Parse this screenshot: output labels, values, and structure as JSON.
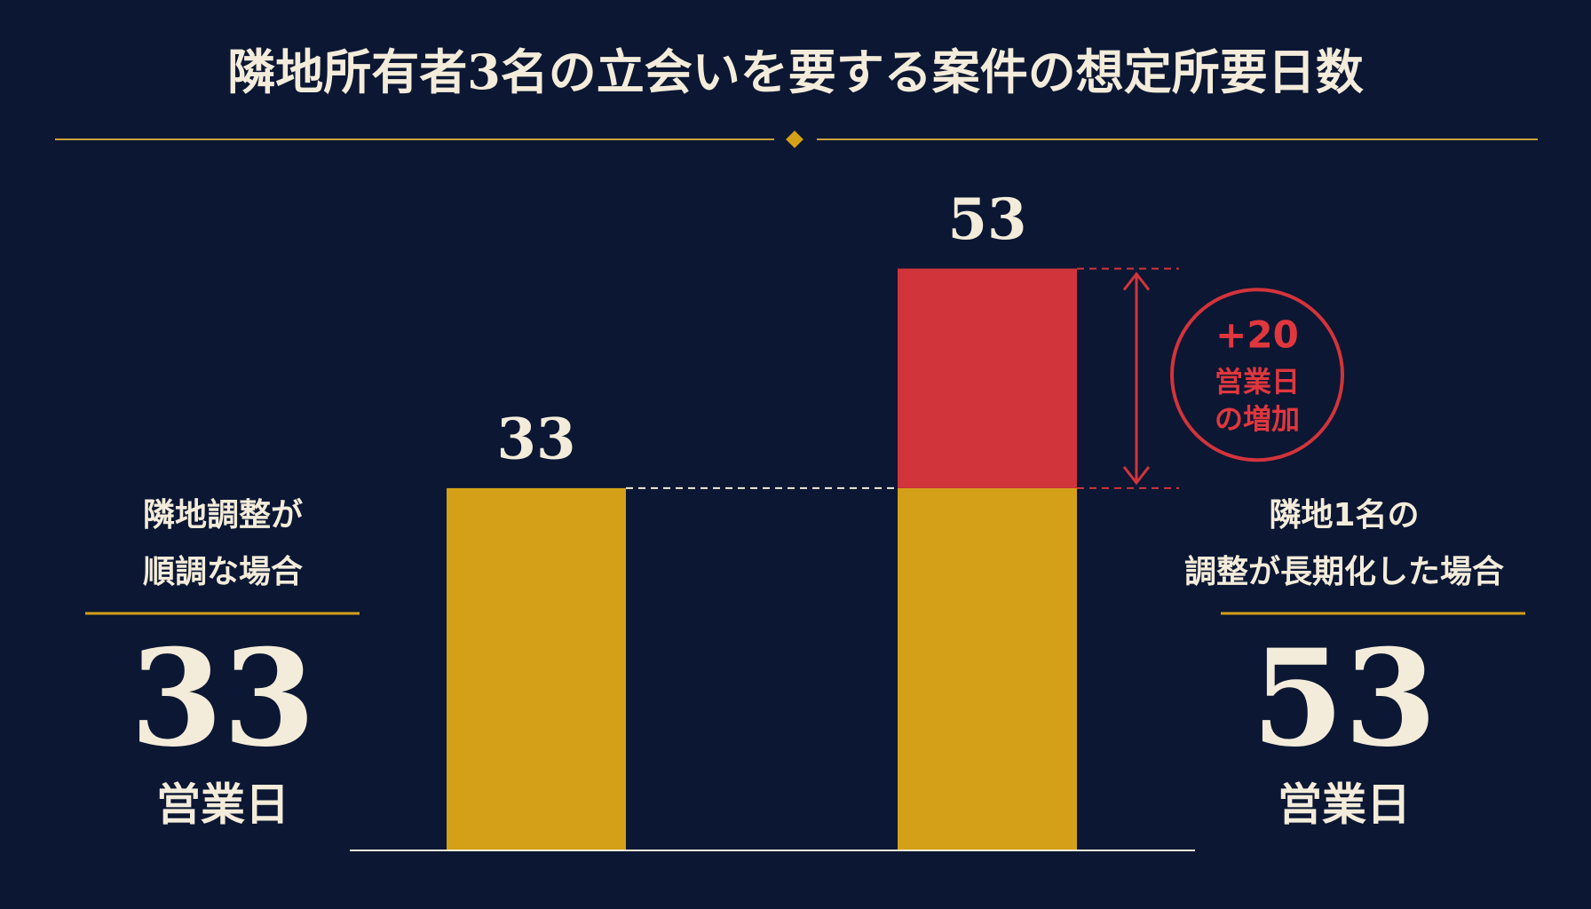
{
  "chart_data": {
    "type": "stacked-bar",
    "title": "隣地所有者3名の立会いを要する案件の想定所要日数",
    "categories": [
      [
        "隣地調整が",
        "順調な場合"
      ],
      [
        "隣地1名の",
        "調整が長期化した場合"
      ]
    ],
    "series": [
      {
        "color": "#d4a017",
        "values": [
          33,
          33
        ]
      },
      {
        "color": "#d2343b",
        "values": [
          null,
          20
        ],
        "value_labels": [
          null,
          "+20"
        ]
      }
    ],
    "totals": [
      33,
      53
    ],
    "annotation": [
      "営業日",
      "の増加"
    ],
    "panels": [
      {
        "value": 33,
        "unit": "営業日"
      },
      {
        "value": 53,
        "unit": "営業日"
      }
    ],
    "ylim": [
      0,
      60
    ]
  }
}
